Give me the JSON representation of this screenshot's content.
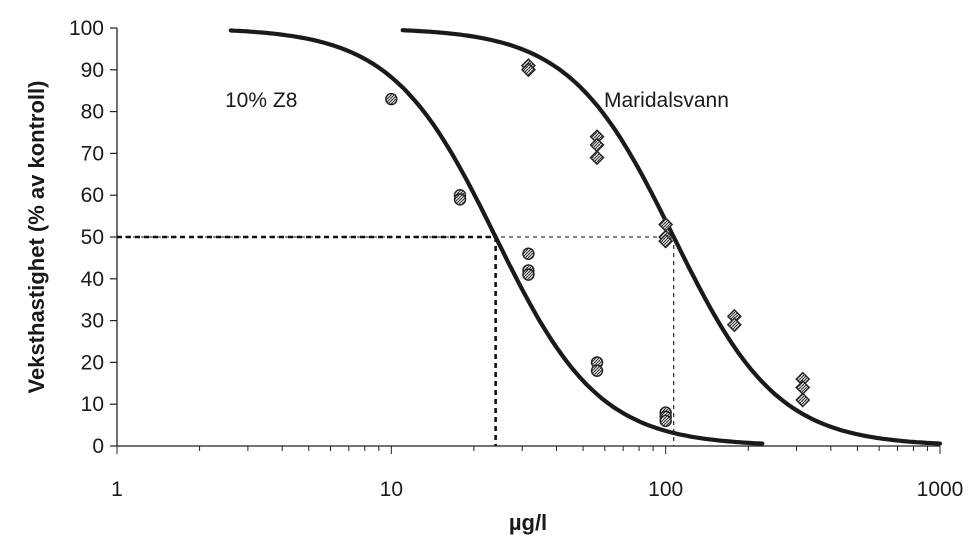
{
  "chart_data": {
    "type": "scatter",
    "xscale": "log",
    "xlim": [
      1,
      1000
    ],
    "ylim": [
      0,
      100
    ],
    "yticks": [
      0,
      10,
      20,
      30,
      40,
      50,
      60,
      70,
      80,
      90,
      100
    ],
    "xticks": [
      1,
      10,
      100,
      1000
    ],
    "xtick_labels": [
      "1",
      "10",
      "100",
      "1000"
    ],
    "xlabel": "µg/l",
    "ylabel": "Veksthastighet (% av kontroll)",
    "grid": false,
    "annotations": [
      "10% Z8",
      "Maridalsvann"
    ],
    "series": [
      {
        "name": "10% Z8",
        "marker": "circle",
        "points": [
          [
            10,
            83
          ],
          [
            17.8,
            60
          ],
          [
            17.8,
            59
          ],
          [
            31.6,
            46
          ],
          [
            31.6,
            42
          ],
          [
            31.6,
            41
          ],
          [
            56.2,
            20
          ],
          [
            56.2,
            18
          ],
          [
            100,
            8
          ],
          [
            100,
            7
          ],
          [
            100,
            6
          ]
        ],
        "fit_curve": {
          "x_range": [
            2.6,
            225
          ],
          "ec50": 24,
          "slope": 2.3
        }
      },
      {
        "name": "Maridalsvann",
        "marker": "diamond",
        "points": [
          [
            31.6,
            91
          ],
          [
            31.6,
            90
          ],
          [
            56.2,
            74
          ],
          [
            56.2,
            72
          ],
          [
            56.2,
            69
          ],
          [
            100,
            53
          ],
          [
            100,
            50
          ],
          [
            100,
            49
          ],
          [
            178,
            31
          ],
          [
            178,
            29
          ],
          [
            316,
            16
          ],
          [
            316,
            14
          ],
          [
            316,
            11
          ]
        ],
        "fit_curve": {
          "x_range": [
            11,
            1000
          ],
          "ec50": 107,
          "slope": 2.3
        }
      }
    ],
    "reference_lines": [
      {
        "style": "dotted-bold",
        "y": 50,
        "x_drop": 24
      },
      {
        "style": "dotted-thin",
        "y": 50,
        "x_drop": 107
      }
    ]
  }
}
